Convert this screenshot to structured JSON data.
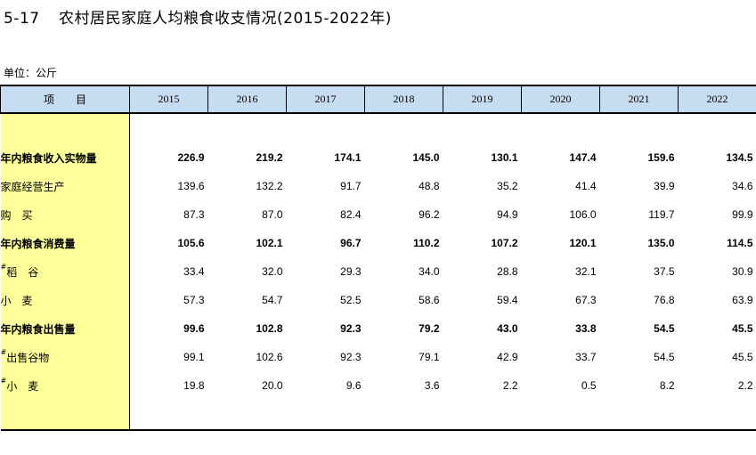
{
  "title": {
    "number": "5-17",
    "text": "农村居民家庭人均粮食收支情况(2015-2022年)"
  },
  "unit": "单位：公斤",
  "header": {
    "item": "项　　目",
    "years": [
      "2015",
      "2016",
      "2017",
      "2018",
      "2019",
      "2020",
      "2021",
      "2022"
    ]
  },
  "rows": [
    {
      "label": "年内粮食收入实物量",
      "bold": true,
      "marker": "",
      "values": [
        "226.9",
        "219.2",
        "174.1",
        "145.0",
        "130.1",
        "147.4",
        "159.6",
        "134.5"
      ]
    },
    {
      "label": "家庭经营生产",
      "bold": false,
      "marker": "",
      "values": [
        "139.6",
        "132.2",
        "91.7",
        "48.8",
        "35.2",
        "41.4",
        "39.9",
        "34.6"
      ]
    },
    {
      "label": "购　买",
      "bold": false,
      "marker": "",
      "values": [
        "87.3",
        "87.0",
        "82.4",
        "96.2",
        "94.9",
        "106.0",
        "119.7",
        "99.9"
      ]
    },
    {
      "label": "年内粮食消费量",
      "bold": true,
      "marker": "",
      "values": [
        "105.6",
        "102.1",
        "96.7",
        "110.2",
        "107.2",
        "120.1",
        "135.0",
        "114.5"
      ]
    },
    {
      "label": "稻　谷",
      "bold": false,
      "marker": "#",
      "values": [
        "33.4",
        "32.0",
        "29.3",
        "34.0",
        "28.8",
        "32.1",
        "37.5",
        "30.9"
      ]
    },
    {
      "label": "小　麦",
      "bold": false,
      "marker": "",
      "values": [
        "57.3",
        "54.7",
        "52.5",
        "58.6",
        "59.4",
        "67.3",
        "76.8",
        "63.9"
      ]
    },
    {
      "label": "年内粮食出售量",
      "bold": true,
      "marker": "",
      "values": [
        "99.6",
        "102.8",
        "92.3",
        "79.2",
        "43.0",
        "33.8",
        "54.5",
        "45.5"
      ]
    },
    {
      "label": "出售谷物",
      "bold": false,
      "marker": "#",
      "values": [
        "99.1",
        "102.6",
        "92.3",
        "79.1",
        "42.9",
        "33.7",
        "54.5",
        "45.5"
      ]
    },
    {
      "label": "小　麦",
      "bold": false,
      "marker": "#",
      "values": [
        "19.8",
        "20.0",
        "9.6",
        "3.6",
        "2.2",
        "0.5",
        "8.2",
        "2.2"
      ]
    }
  ]
}
